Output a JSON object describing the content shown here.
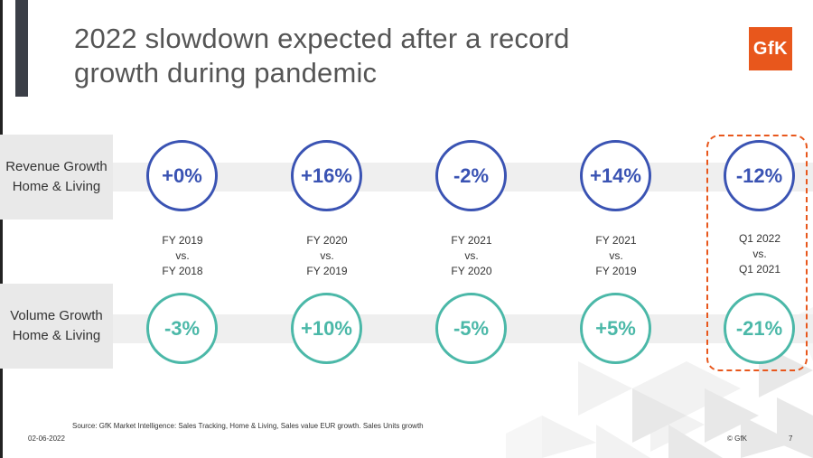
{
  "title": "2022 slowdown expected after a record growth during pandemic",
  "logo_text": "GfK",
  "rows": {
    "revenue": {
      "label": "Revenue Growth\nHome & Living",
      "values": [
        "+0%",
        "+16%",
        "-2%",
        "+14%",
        "-12%"
      ],
      "color": "#3a53b3"
    },
    "volume": {
      "label": "Volume Growth\nHome & Living",
      "values": [
        "-3%",
        "+10%",
        "-5%",
        "+5%",
        "-21%"
      ],
      "color": "#4bb8a8"
    }
  },
  "periods": [
    "FY 2019\nvs.\nFY 2018",
    "FY 2020\nvs.\nFY 2019",
    "FY 2021\nvs.\nFY 2020",
    "FY 2021\nvs.\nFY 2019",
    "Q1 2022\nvs.\nQ1 2021"
  ],
  "footer": {
    "source": "Source: GfK Market Intelligence: Sales Tracking, Home & Living,  Sales value EUR growth. Sales Units growth",
    "date": "02-06-2022",
    "copyright": "© GfK",
    "page": "7"
  },
  "colors": {
    "highlight": "#e8571c",
    "accent_bar": "#3b3f47"
  }
}
